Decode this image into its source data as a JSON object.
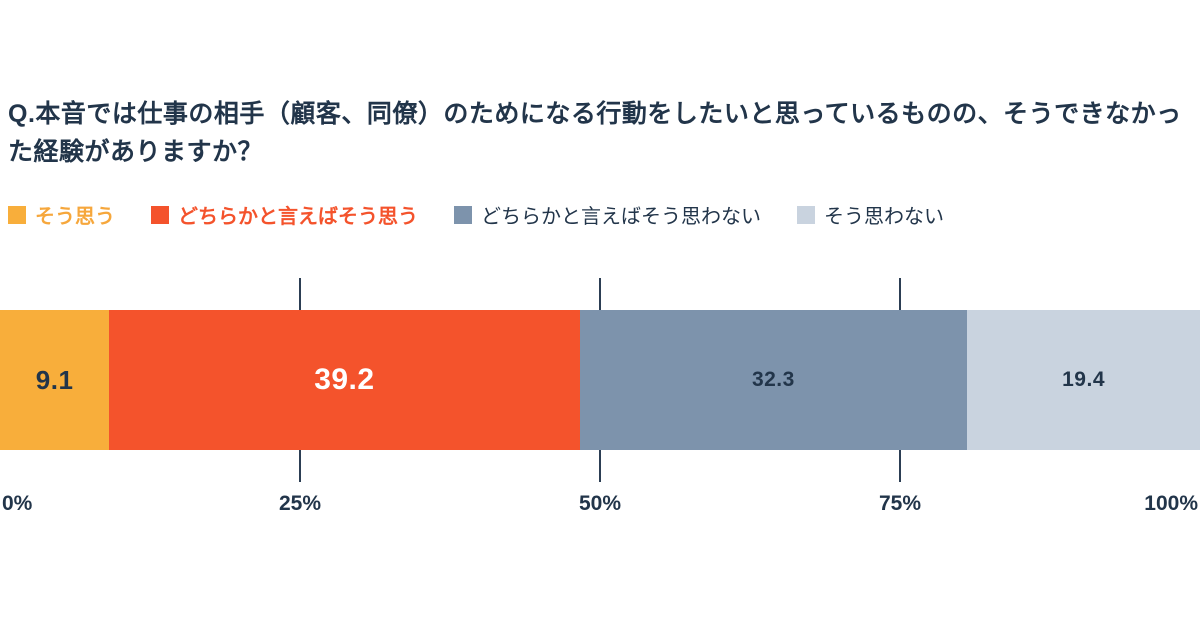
{
  "title": "Q.本音では仕事の相手（顧客、同僚）のためになる行動をしたいと思っているものの、そうできなかった経験がありますか？",
  "colors": {
    "text": "#22354A",
    "background": "#FFFFFF",
    "gridline": "#2C3E53"
  },
  "chart_data": {
    "type": "bar",
    "variant": "stacked-horizontal-100",
    "unit": "%",
    "xlim": [
      0,
      100
    ],
    "gridlines_at": [
      25,
      50,
      75
    ],
    "x_ticks": [
      {
        "label": "0%",
        "value": 0
      },
      {
        "label": "25%",
        "value": 25
      },
      {
        "label": "50%",
        "value": 50
      },
      {
        "label": "75%",
        "value": 75
      },
      {
        "label": "100%",
        "value": 100
      }
    ],
    "series": [
      {
        "name": "そう思う",
        "value": 9.1,
        "color": "#F8AE3B",
        "value_text_color": "#22354A",
        "legend_text_color": "#F6A73C",
        "legend_bold": true
      },
      {
        "name": "どちらかと言えばそう思う",
        "value": 39.2,
        "color": "#F4532C",
        "value_text_color": "#FFFFFF",
        "legend_text_color": "#F4532C",
        "legend_bold": true
      },
      {
        "name": "どちらかと言えばそう思わない",
        "value": 32.3,
        "color": "#7D93AC",
        "value_text_color": "#22354A",
        "legend_text_color": "#22354A",
        "legend_bold": false
      },
      {
        "name": "そう思わない",
        "value": 19.4,
        "color": "#C9D3DF",
        "value_text_color": "#22354A",
        "legend_text_color": "#22354A",
        "legend_bold": false
      }
    ]
  }
}
